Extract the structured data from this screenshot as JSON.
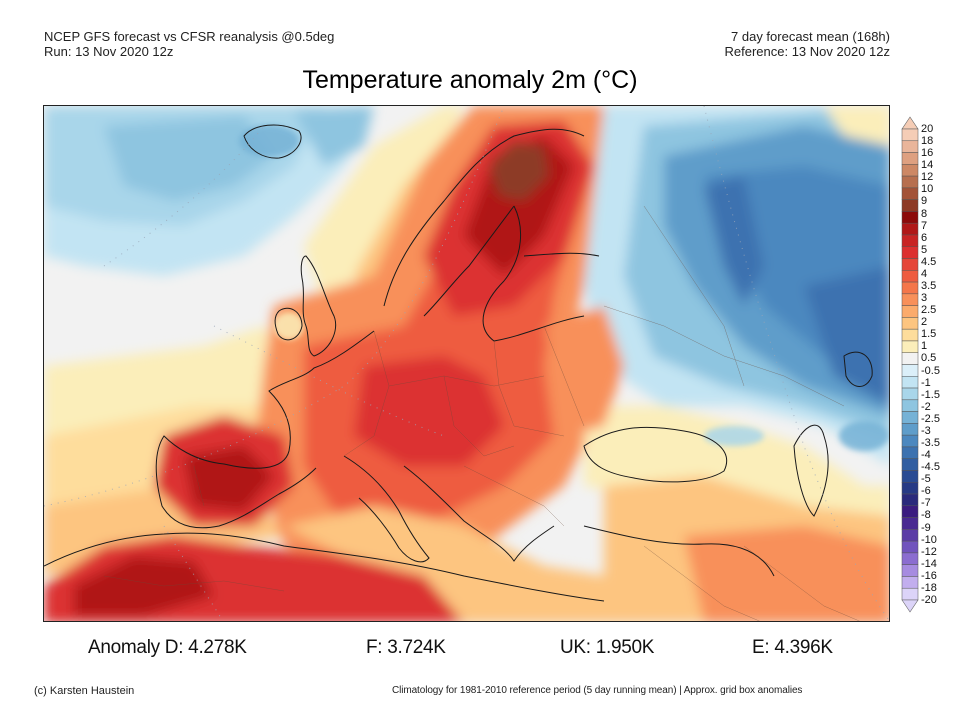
{
  "header": {
    "left_line1": "NCEP GFS forecast vs CFSR reanalysis @0.5deg",
    "left_line2": "Run: 13 Nov 2020 12z",
    "right_line1": "7 day forecast mean (168h)",
    "right_line2": "Reference: 13 Nov 2020 12z"
  },
  "title": "Temperature anomaly 2m (°C)",
  "legend": {
    "labels": [
      "20",
      "18",
      "16",
      "14",
      "12",
      "10",
      "9",
      "8",
      "7",
      "6",
      "5",
      "4.5",
      "4",
      "3.5",
      "3",
      "2.5",
      "2",
      "1.5",
      "1",
      "0.5",
      "-0.5",
      "-1",
      "-1.5",
      "-2",
      "-2.5",
      "-3",
      "-3.5",
      "-4",
      "-4.5",
      "-5",
      "-6",
      "-7",
      "-8",
      "-9",
      "-10",
      "-12",
      "-14",
      "-16",
      "-18",
      "-20"
    ],
    "colors": [
      "#f5cdb6",
      "#e9b59a",
      "#dea080",
      "#cd8865",
      "#b76f4f",
      "#a35338",
      "#8d3a25",
      "#8c0a0a",
      "#b01818",
      "#c82424",
      "#dc3030",
      "#e54638",
      "#ee5c40",
      "#f4764a",
      "#f8905a",
      "#fbab6c",
      "#fdc580",
      "#fedd9c",
      "#fbeeba",
      "#f2f2f2",
      "#dbeff9",
      "#c2e4f3",
      "#a9d6ea",
      "#8ec5e0",
      "#76b2d6",
      "#5f9dca",
      "#4c88bf",
      "#3c72b0",
      "#315ea1",
      "#294b93",
      "#263a85",
      "#2a2a7c",
      "#3b1c80",
      "#4a2a92",
      "#5b3ca6",
      "#7154bd",
      "#8b6dd0",
      "#a68be0",
      "#c2aeee",
      "#dcd4f8"
    ],
    "top_triangle_color": "#f5cdb6",
    "bottom_triangle_color": "#dcd4f8"
  },
  "stats": {
    "d": "Anomaly D: 4.278K",
    "f": "F: 3.724K",
    "uk": "UK: 1.950K",
    "e": "E: 4.396K"
  },
  "footer": {
    "left": "(c) Karsten Haustein",
    "right": "Climatology for 1981-2010 reference period (5 day running mean) | Approx. grid box anomalies"
  }
}
